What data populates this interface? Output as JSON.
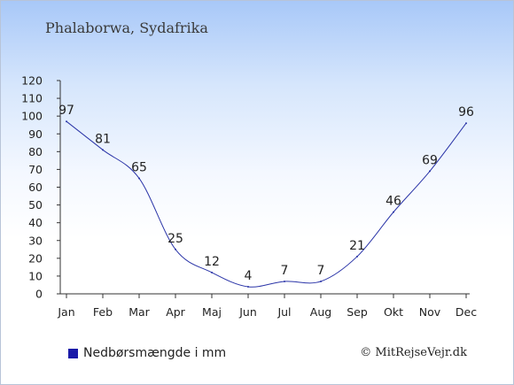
{
  "header": {
    "title": "Phalaborwa, Sydafrika"
  },
  "legend": {
    "label": "Nedbørsmængde i mm"
  },
  "credit": {
    "text": "© MitRejseVejr.dk"
  },
  "colors": {
    "line": "#2b35a8",
    "legend_swatch": "#1a1aa8"
  },
  "chart_data": {
    "type": "line",
    "categories": [
      "Jan",
      "Feb",
      "Mar",
      "Apr",
      "Maj",
      "Jun",
      "Jul",
      "Aug",
      "Sep",
      "Okt",
      "Nov",
      "Dec"
    ],
    "series": [
      {
        "values": [
          97,
          81,
          65,
          25,
          12,
          4,
          7,
          7,
          21,
          46,
          69,
          96
        ]
      }
    ],
    "ylim": [
      0,
      120
    ],
    "yticks": [
      0,
      10,
      20,
      30,
      40,
      50,
      60,
      70,
      80,
      90,
      100,
      110,
      120
    ],
    "grid": false,
    "legend_position": "bottom-left"
  }
}
